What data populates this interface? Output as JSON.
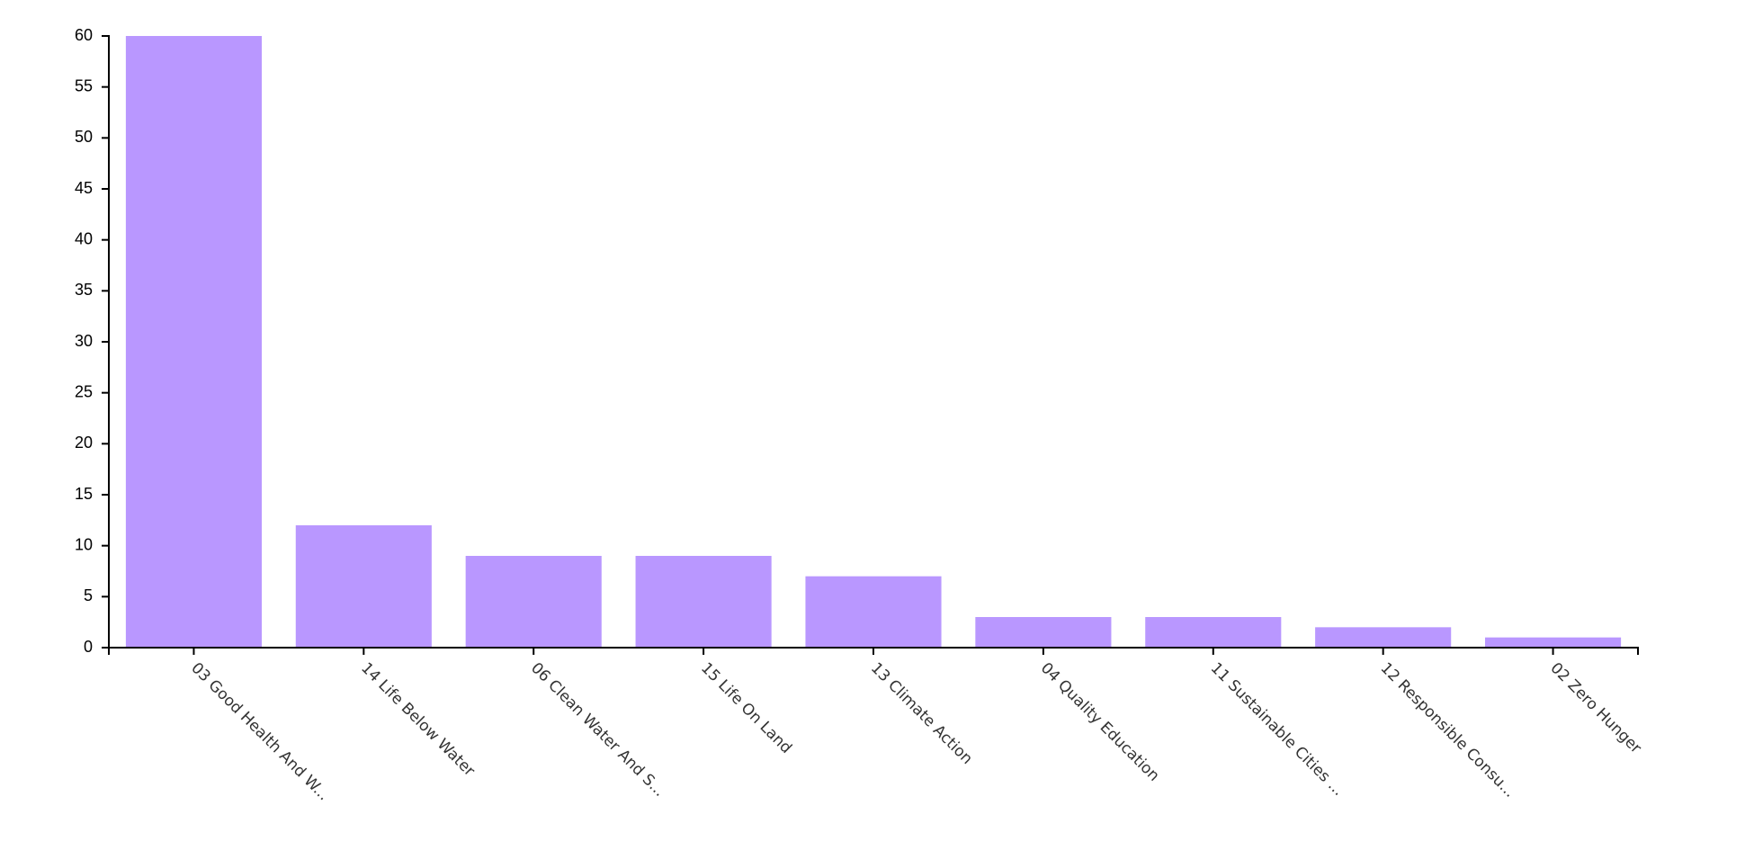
{
  "chart_data": {
    "type": "bar",
    "categories": [
      "03 Good Health And W...",
      "14 Life Below Water",
      "06 Clean Water And S...",
      "15 Life On Land",
      "13 Climate Action",
      "04 Quality Education",
      "11 Sustainable Cities ...",
      "12 Responsible Consu...",
      "02 Zero Hunger"
    ],
    "values": [
      60,
      12,
      9,
      9,
      7,
      3,
      3,
      2,
      1
    ],
    "title": "",
    "xlabel": "",
    "ylabel": "",
    "ylim": [
      0,
      60
    ],
    "yticks": [
      0,
      5,
      10,
      15,
      20,
      25,
      30,
      35,
      40,
      45,
      50,
      55,
      60
    ],
    "grid": false,
    "legend": "none",
    "colors": {
      "bar": "#b997ff",
      "axis": "#000000",
      "tick_label": "#333333"
    }
  }
}
